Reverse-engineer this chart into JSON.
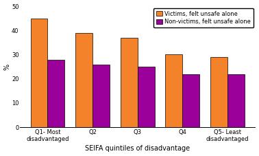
{
  "categories": [
    "Q1- Most\ndisadvantaged",
    "Q2",
    "Q3",
    "Q4",
    "Q5- Least\ndisadvantaged"
  ],
  "victims": [
    45,
    39,
    37,
    30,
    29
  ],
  "non_victims": [
    28,
    26,
    25,
    22,
    22
  ],
  "victims_color": "#F4822A",
  "non_victims_color": "#9B009B",
  "victims_label": "Victims, felt unsafe alone",
  "non_victims_label": "Non-victims, felt unsafe alone",
  "xlabel": "SEIFA quintiles of disadvantage",
  "ylabel": "%",
  "ylim": [
    0,
    50
  ],
  "yticks": [
    0,
    10,
    20,
    30,
    40,
    50
  ],
  "grid_color": "#ffffff",
  "bg_color": "#ffffff",
  "bar_width": 0.38,
  "axis_fontsize": 7,
  "tick_fontsize": 6,
  "legend_fontsize": 6
}
